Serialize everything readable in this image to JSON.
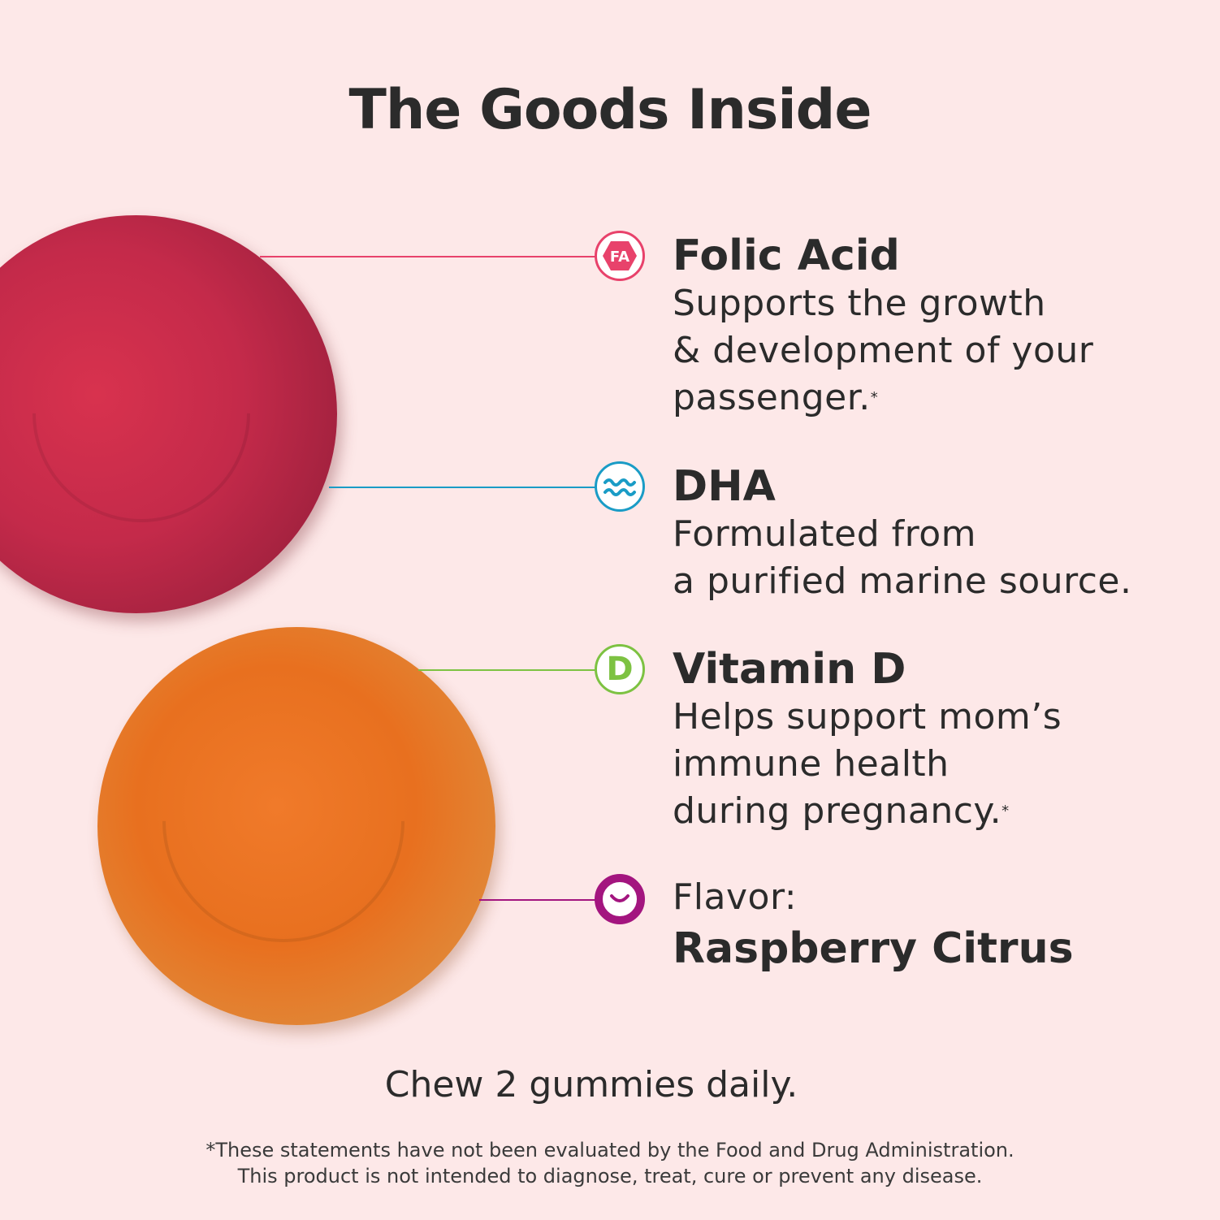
{
  "title": "The Goods Inside",
  "colors": {
    "background": "#fde8e8",
    "folic": "#e8426b",
    "dha": "#1a9cc6",
    "vitd": "#7dc242",
    "flavor": "#a3157f"
  },
  "items": [
    {
      "icon": "folic-acid-hexagon-icon",
      "icon_text": "FA",
      "heading": "Folic Acid",
      "lines": [
        "Supports the growth",
        "& development of your",
        "passenger."
      ],
      "asterisk": "*"
    },
    {
      "icon": "waves-icon",
      "heading": "DHA",
      "lines": [
        "Formulated from",
        "a purified marine source."
      ]
    },
    {
      "icon": "vitamin-d-icon",
      "icon_text": "D",
      "heading": "Vitamin D",
      "lines": [
        "Helps support mom’s",
        "immune health",
        "during pregnancy."
      ],
      "asterisk": "*"
    },
    {
      "icon": "smile-icon",
      "label": "Flavor:",
      "heading": "Raspberry Citrus"
    }
  ],
  "directions": "Chew 2 gummies daily.",
  "disclaimer": [
    "*These statements have not been evaluated by the Food and Drug Administration.",
    "This product is not intended to diagnose, treat, cure or prevent any disease."
  ]
}
